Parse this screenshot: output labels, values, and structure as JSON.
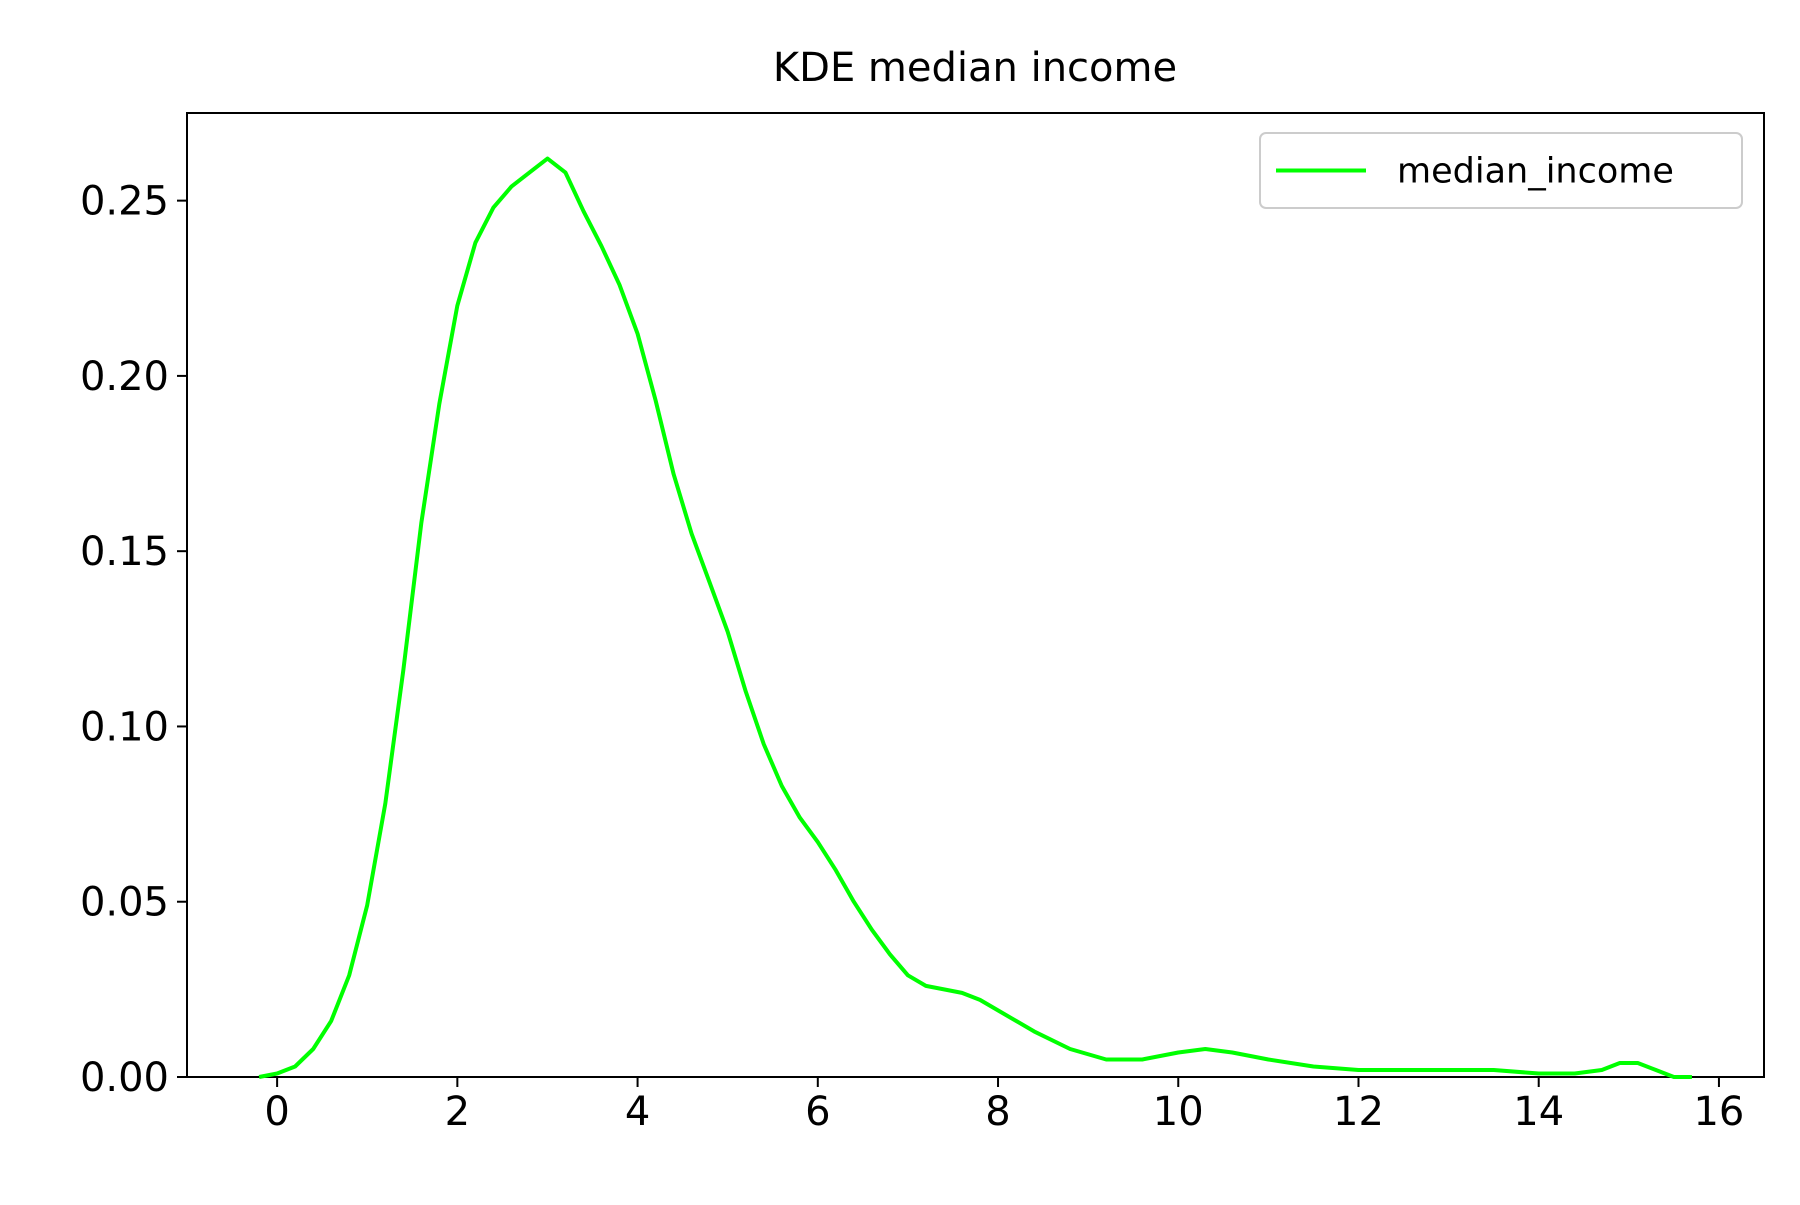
{
  "chart_data": {
    "type": "line",
    "title": "KDE median income",
    "xlabel": "",
    "ylabel": "",
    "xlim": [
      -1,
      16.5
    ],
    "ylim": [
      0,
      0.275
    ],
    "xticks": [
      {
        "value": 0,
        "label": "0"
      },
      {
        "value": 2,
        "label": "2"
      },
      {
        "value": 4,
        "label": "4"
      },
      {
        "value": 6,
        "label": "6"
      },
      {
        "value": 8,
        "label": "8"
      },
      {
        "value": 10,
        "label": "10"
      },
      {
        "value": 12,
        "label": "12"
      },
      {
        "value": 14,
        "label": "14"
      },
      {
        "value": 16,
        "label": "16"
      }
    ],
    "yticks": [
      {
        "value": 0.0,
        "label": "0.00"
      },
      {
        "value": 0.05,
        "label": "0.05"
      },
      {
        "value": 0.1,
        "label": "0.10"
      },
      {
        "value": 0.15,
        "label": "0.15"
      },
      {
        "value": 0.2,
        "label": "0.20"
      },
      {
        "value": 0.25,
        "label": "0.25"
      }
    ],
    "grid": false,
    "legend_position": "top-right",
    "series": [
      {
        "name": "median_income",
        "color": "#00ff00",
        "x": [
          -0.2,
          0.0,
          0.2,
          0.4,
          0.6,
          0.8,
          1.0,
          1.2,
          1.4,
          1.6,
          1.8,
          2.0,
          2.2,
          2.4,
          2.6,
          2.8,
          3.0,
          3.2,
          3.4,
          3.6,
          3.8,
          4.0,
          4.2,
          4.4,
          4.6,
          4.8,
          5.0,
          5.2,
          5.4,
          5.6,
          5.8,
          6.0,
          6.2,
          6.4,
          6.6,
          6.8,
          7.0,
          7.2,
          7.4,
          7.6,
          7.8,
          8.0,
          8.4,
          8.8,
          9.2,
          9.6,
          10.0,
          10.3,
          10.6,
          11.0,
          11.5,
          12.0,
          12.5,
          13.0,
          13.5,
          14.0,
          14.4,
          14.7,
          14.9,
          15.1,
          15.3,
          15.5,
          15.7
        ],
        "y": [
          0.0,
          0.001,
          0.003,
          0.008,
          0.016,
          0.029,
          0.049,
          0.078,
          0.116,
          0.158,
          0.192,
          0.22,
          0.238,
          0.248,
          0.254,
          0.258,
          0.262,
          0.258,
          0.247,
          0.237,
          0.226,
          0.212,
          0.193,
          0.172,
          0.155,
          0.141,
          0.127,
          0.11,
          0.095,
          0.083,
          0.074,
          0.067,
          0.059,
          0.05,
          0.042,
          0.035,
          0.029,
          0.026,
          0.025,
          0.024,
          0.022,
          0.019,
          0.013,
          0.008,
          0.005,
          0.005,
          0.007,
          0.008,
          0.007,
          0.005,
          0.003,
          0.002,
          0.002,
          0.002,
          0.002,
          0.001,
          0.001,
          0.002,
          0.004,
          0.004,
          0.002,
          0.0,
          0.0
        ]
      }
    ]
  }
}
